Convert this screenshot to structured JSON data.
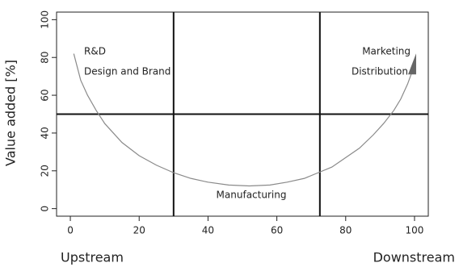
{
  "chart_data": {
    "type": "line",
    "ylabel": "Value added [%]",
    "x_end_labels": [
      "Upstream",
      "Downstream"
    ],
    "x": [
      1,
      3,
      5,
      7.5,
      10,
      15,
      20,
      25,
      30,
      35,
      40,
      46,
      52,
      58,
      63,
      68,
      72,
      76,
      80,
      84,
      88,
      91,
      94,
      96,
      98,
      99,
      100
    ],
    "values": [
      82,
      68,
      60,
      52,
      45,
      35,
      28,
      23,
      19,
      16,
      14,
      12.5,
      12,
      12.5,
      14,
      16,
      19,
      22,
      27,
      32,
      39,
      45,
      52,
      58,
      66,
      71,
      77
    ],
    "color": "#8a8a8a",
    "xlim": [
      -4,
      104
    ],
    "ylim": [
      -4,
      104
    ],
    "xticks": [
      0,
      20,
      40,
      60,
      80,
      100
    ],
    "yticks": [
      0,
      20,
      40,
      60,
      80,
      100
    ],
    "vlines": [
      30,
      72.5
    ],
    "hlines": [
      50
    ],
    "annotations": [
      "R&D",
      "Design and Brand",
      "Marketing",
      "Distribution",
      "Manufacturing"
    ]
  }
}
